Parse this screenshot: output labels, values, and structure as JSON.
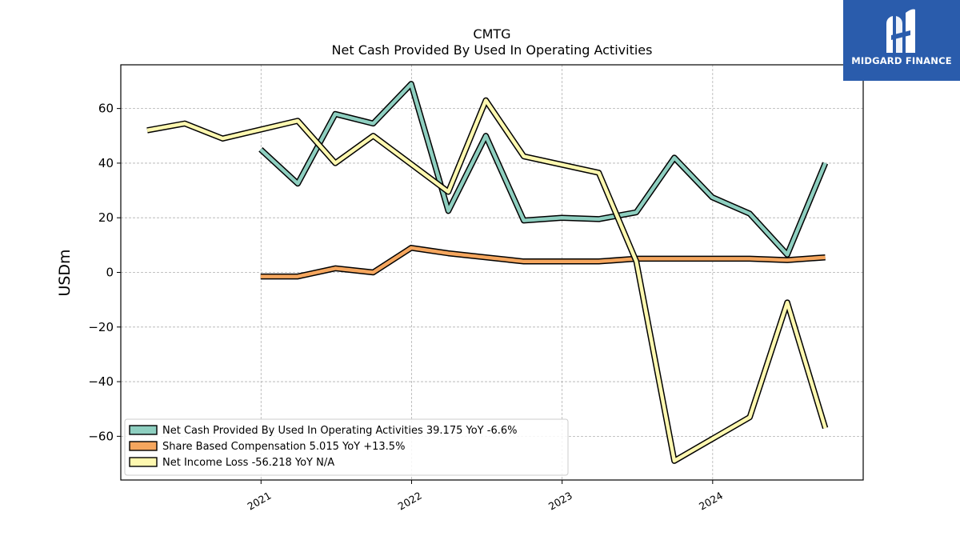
{
  "chart_data": {
    "type": "line",
    "title": "CMTG",
    "subtitle": "Net Cash Provided By Used In Operating Activities",
    "ylabel": "USDm",
    "xlabel": "",
    "ylim": [
      -76,
      76
    ],
    "yticks": [
      -60,
      -40,
      -20,
      0,
      20,
      40,
      60
    ],
    "xlim": [
      "2020-01-27",
      "2024-12-31"
    ],
    "xticks": [
      {
        "date": "2021-01-01",
        "label": "2021"
      },
      {
        "date": "2022-01-01",
        "label": "2022"
      },
      {
        "date": "2023-01-01",
        "label": "2023"
      },
      {
        "date": "2024-01-01",
        "label": "2024"
      }
    ],
    "grid": true,
    "legend_position": "lower-left",
    "series": [
      {
        "name": "Net Cash Provided By Used In Operating Activities  39.175 YoY -6.6%",
        "color": "#8ecfc0",
        "points": [
          [
            "2020-12-31",
            45.0
          ],
          [
            "2021-03-31",
            32.5
          ],
          [
            "2021-06-30",
            58.0
          ],
          [
            "2021-09-30",
            54.5
          ],
          [
            "2021-12-31",
            69.0
          ],
          [
            "2022-03-31",
            22.5
          ],
          [
            "2022-06-30",
            50.0
          ],
          [
            "2022-09-30",
            19.0
          ],
          [
            "2022-12-31",
            20.0
          ],
          [
            "2023-03-31",
            19.5
          ],
          [
            "2023-06-30",
            22.0
          ],
          [
            "2023-09-30",
            42.0
          ],
          [
            "2023-12-31",
            27.5
          ],
          [
            "2024-03-31",
            21.5
          ],
          [
            "2024-06-30",
            6.5
          ],
          [
            "2024-09-30",
            40.0
          ]
        ]
      },
      {
        "name": "Share Based Compensation  5.015 YoY +13.5%",
        "color": "#f5a65e",
        "points": [
          [
            "2020-12-31",
            -1.5
          ],
          [
            "2021-03-31",
            -1.5
          ],
          [
            "2021-06-30",
            1.5
          ],
          [
            "2021-09-30",
            0.0
          ],
          [
            "2021-12-31",
            9.0
          ],
          [
            "2022-03-31",
            7.0
          ],
          [
            "2022-06-30",
            5.5
          ],
          [
            "2022-09-30",
            4.0
          ],
          [
            "2022-12-31",
            4.0
          ],
          [
            "2023-03-31",
            4.0
          ],
          [
            "2023-06-30",
            5.0
          ],
          [
            "2023-09-30",
            5.0
          ],
          [
            "2023-12-31",
            5.0
          ],
          [
            "2024-03-31",
            5.0
          ],
          [
            "2024-06-30",
            4.5
          ],
          [
            "2024-09-30",
            5.5
          ]
        ]
      },
      {
        "name": "Net Income Loss  -56.218 YoY N/A",
        "color": "#fef8b0",
        "points": [
          [
            "2020-03-31",
            52.0
          ],
          [
            "2020-06-30",
            54.5
          ],
          [
            "2020-09-30",
            49.0
          ],
          [
            "2021-03-31",
            55.5
          ],
          [
            "2021-06-30",
            40.0
          ],
          [
            "2021-09-30",
            50.0
          ],
          [
            "2022-03-31",
            29.5
          ],
          [
            "2022-06-30",
            63.0
          ],
          [
            "2022-09-30",
            42.5
          ],
          [
            "2023-03-31",
            36.5
          ],
          [
            "2023-06-30",
            4.0
          ],
          [
            "2023-09-30",
            -69.0
          ],
          [
            "2024-03-31",
            -53.0
          ],
          [
            "2024-06-30",
            -11.0
          ],
          [
            "2024-09-30",
            -57.0
          ]
        ]
      }
    ]
  },
  "logo": {
    "text": "MIDGARD FINANCE"
  }
}
